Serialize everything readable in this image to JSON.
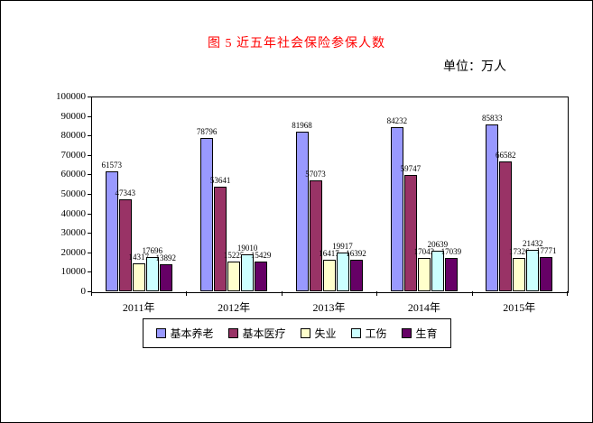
{
  "title": "图 5  近五年社会保险参保人数",
  "unit_label": "单位：万人",
  "chart_data": {
    "type": "bar",
    "title": "图 5  近五年社会保险参保人数",
    "unit": "万人",
    "categories": [
      "2011年",
      "2012年",
      "2013年",
      "2014年",
      "2015年"
    ],
    "series": [
      {
        "name": "基本养老",
        "color": "#9999ff",
        "values": [
          61573,
          78796,
          81968,
          84232,
          85833
        ]
      },
      {
        "name": "基本医疗",
        "color": "#993366",
        "values": [
          47343,
          53641,
          57073,
          59747,
          66582
        ]
      },
      {
        "name": "失业",
        "color": "#ffffcc",
        "values": [
          14317,
          15225,
          16417,
          17043,
          17326
        ]
      },
      {
        "name": "工伤",
        "color": "#ccffff",
        "values": [
          17696,
          19010,
          19917,
          20639,
          21432
        ]
      },
      {
        "name": "生育",
        "color": "#660066",
        "values": [
          13892,
          15429,
          16392,
          17039,
          17771
        ]
      }
    ],
    "ylim": [
      0,
      100000
    ],
    "yticks": [
      0,
      10000,
      20000,
      30000,
      40000,
      50000,
      60000,
      70000,
      80000,
      90000,
      100000
    ],
    "grid": false,
    "legend_position": "bottom",
    "bar_outline_color": "#000000"
  }
}
